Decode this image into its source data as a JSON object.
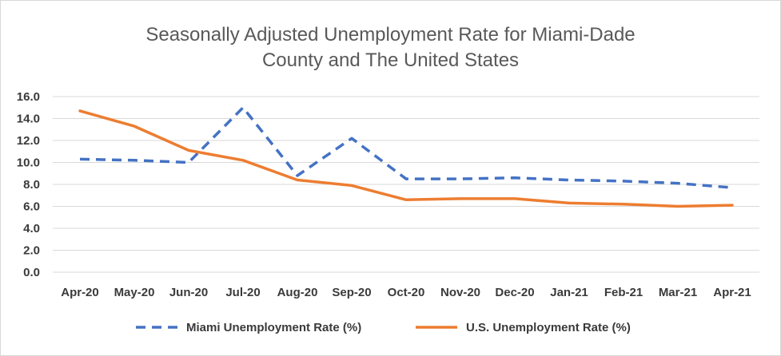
{
  "chart_data": {
    "type": "line",
    "title_lines": [
      "Seasonally Adjusted Unemployment Rate for Miami-Dade",
      "County and The United States"
    ],
    "xlabel": "",
    "ylabel": "",
    "ylim": [
      0,
      16
    ],
    "ytick_values": [
      0,
      2,
      4,
      6,
      8,
      10,
      12,
      14,
      16
    ],
    "ytick_labels": [
      "0.0",
      "2.0",
      "4.0",
      "6.0",
      "8.0",
      "10.0",
      "12.0",
      "14.0",
      "16.0"
    ],
    "grid": true,
    "legend_position": "bottom",
    "categories": [
      "Apr-20",
      "May-20",
      "Jun-20",
      "Jul-20",
      "Aug-20",
      "Sep-20",
      "Oct-20",
      "Nov-20",
      "Dec-20",
      "Jan-21",
      "Feb-21",
      "Mar-21",
      "Apr-21"
    ],
    "series": [
      {
        "name": "Miami Unemployment Rate (%)",
        "color": "#4472C4",
        "style": "dashed",
        "values": [
          10.3,
          10.2,
          10.0,
          15.0,
          8.8,
          12.2,
          8.5,
          8.5,
          8.6,
          8.4,
          8.3,
          8.1,
          7.7
        ]
      },
      {
        "name": "U.S. Unemployment Rate (%)",
        "color": "#ED7D31",
        "style": "solid",
        "values": [
          14.7,
          13.3,
          11.1,
          10.2,
          8.4,
          7.9,
          6.6,
          6.7,
          6.7,
          6.3,
          6.2,
          6.0,
          6.1
        ]
      }
    ]
  }
}
